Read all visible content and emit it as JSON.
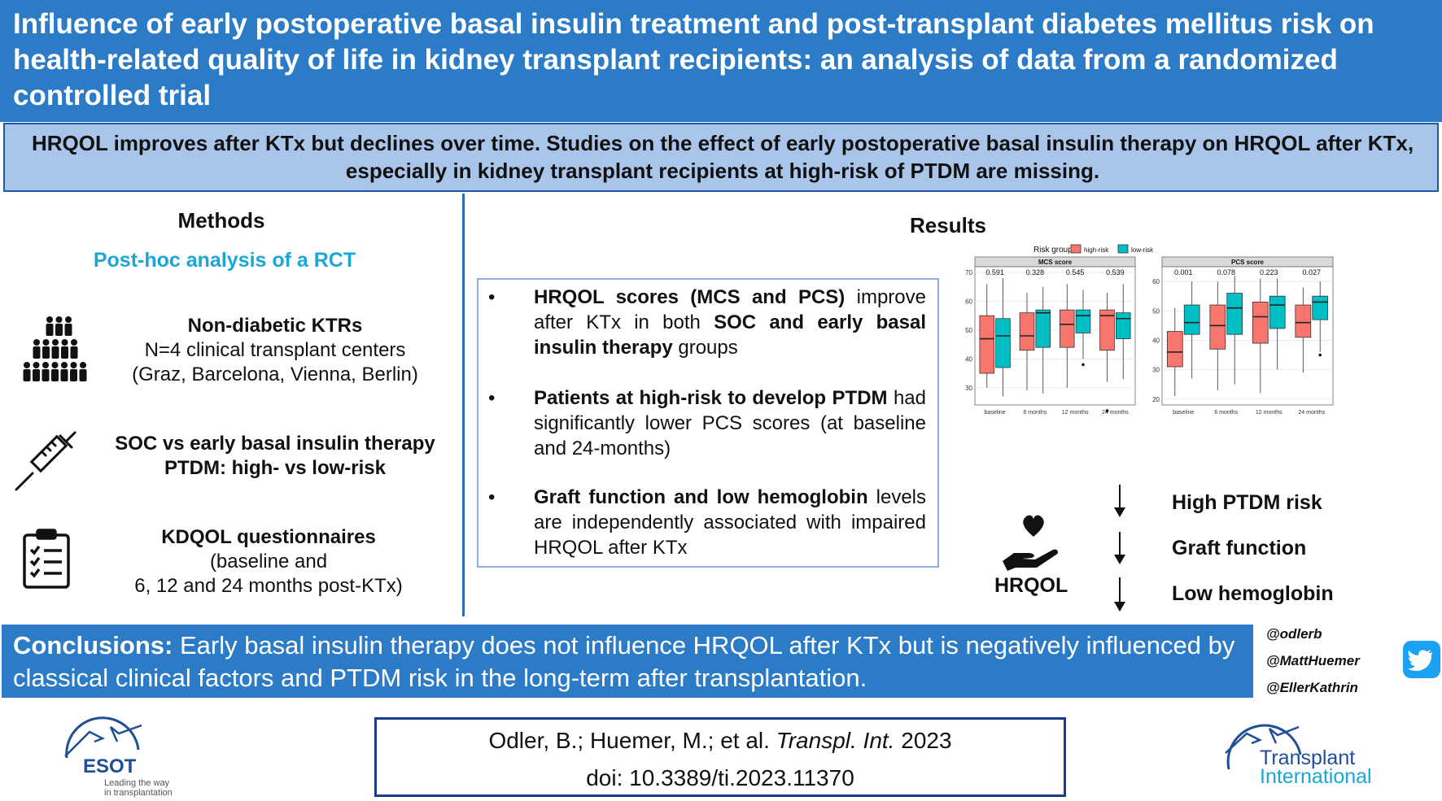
{
  "title": "Influence of early postoperative basal insulin treatment and post-transplant diabetes mellitus risk on health-related quality of life in kidney transplant recipients: an analysis of data from a randomized controlled trial",
  "subtitle": "HRQOL improves after KTx but declines over time. Studies on the effect of early postoperative basal insulin therapy on HRQOL after KTx, especially in kidney transplant recipients at high-risk of PTDM are missing.",
  "methods": {
    "heading": "Methods",
    "subheading": "Post-hoc analysis of a RCT",
    "items": [
      {
        "icon": "people-group-icon",
        "title": "Non-diabetic KTRs",
        "line1": "N=4 clinical transplant centers",
        "line2": "(Graz, Barcelona, Vienna, Berlin)"
      },
      {
        "icon": "syringe-icon",
        "title": "SOC vs early basal insulin therapy",
        "line1": "PTDM: high- vs low-risk",
        "line2": ""
      },
      {
        "icon": "clipboard-checklist-icon",
        "title": "KDQOL questionnaires",
        "line1": "(baseline and",
        "line2": "6, 12 and 24 months post-KTx)"
      }
    ]
  },
  "results": {
    "heading": "Results",
    "findings": [
      {
        "bold1": "HRQOL scores (MCS and PCS)",
        "text1": " improve after KTx in both ",
        "bold2": "SOC and early basal insulin therapy",
        "text2": " groups"
      },
      {
        "bold1": "Patients at high-risk to develop PTDM",
        "text1": " had significantly lower PCS scores (at baseline and 24-months)",
        "bold2": "",
        "text2": ""
      },
      {
        "bold1": "Graft function and low hemoglobin",
        "text1": " levels are independently associated with impaired HRQOL after KTx",
        "bold2": "",
        "text2": ""
      }
    ],
    "factors": [
      "High PTDM risk",
      "Graft function",
      "Low hemoglobin"
    ],
    "hrqol_label": "HRQOL"
  },
  "chart_data": {
    "type": "boxplot",
    "legend": {
      "title": "Risk group",
      "entries": [
        "high-risk",
        "low-risk"
      ],
      "placement": "top"
    },
    "colors": {
      "high-risk": "#f8766d",
      "low-risk": "#00bfc4"
    },
    "categories": [
      "baseline",
      "6 months",
      "12 months",
      "24 months"
    ],
    "panels": [
      {
        "title": "MCS score",
        "ylim": [
          24,
          72
        ],
        "yticks": [
          30,
          40,
          50,
          60,
          70
        ],
        "pvalues": [
          "0.591",
          "0.328",
          "0.545",
          "0.539"
        ],
        "series": [
          {
            "name": "high-risk",
            "boxes": [
              [
                30,
                35,
                47,
                55,
                66
              ],
              [
                29,
                43,
                48,
                56,
                63
              ],
              [
                30,
                44,
                52,
                57,
                66
              ],
              [
                32,
                43,
                55,
                57,
                63
              ]
            ]
          },
          {
            "name": "low-risk",
            "boxes": [
              [
                27,
                37,
                48,
                54,
                68
              ],
              [
                28,
                44,
                56,
                57,
                65
              ],
              [
                40,
                49,
                55,
                57,
                64
              ],
              [
                33,
                47,
                54,
                56,
                66
              ]
            ]
          }
        ],
        "outliers": [
          {
            "category": "12 months",
            "series": "low-risk",
            "value": 38
          },
          {
            "category": "24 months",
            "series": "high-risk",
            "value": 22
          }
        ]
      },
      {
        "title": "PCS score",
        "ylim": [
          18,
          65
        ],
        "yticks": [
          20,
          30,
          40,
          50,
          60
        ],
        "pvalues": [
          "0.001",
          "0.078",
          "0.223",
          "0.027"
        ],
        "series": [
          {
            "name": "high-risk",
            "boxes": [
              [
                21,
                31,
                36,
                43,
                51
              ],
              [
                23,
                37,
                45,
                52,
                60
              ],
              [
                22,
                39,
                48,
                53,
                61
              ],
              [
                29,
                41,
                46,
                52,
                58
              ]
            ]
          },
          {
            "name": "low-risk",
            "boxes": [
              [
                27,
                42,
                46,
                52,
                60
              ],
              [
                25,
                42,
                51,
                56,
                62
              ],
              [
                30,
                44,
                52,
                55,
                61
              ],
              [
                36,
                47,
                53,
                55,
                60
              ]
            ]
          }
        ],
        "outliers": [
          {
            "category": "24 months",
            "series": "low-risk",
            "value": 35
          }
        ]
      }
    ]
  },
  "conclusions": {
    "label": "Conclusions:",
    "text": " Early basal insulin therapy does not influence HRQOL after KTx but is negatively influenced by classical clinical factors and PTDM risk in the long-term after transplantation."
  },
  "social": {
    "handles": [
      "@odlerb",
      "@MattHuemer",
      "@EllerKathrin"
    ],
    "icon": "twitter-bird-icon"
  },
  "citation": {
    "authors": "Odler, B.; Huemer, M.; et al. ",
    "journal": "Transpl. Int.",
    "year": " 2023",
    "doi": "doi: 10.3389/ti.2023.11370"
  },
  "logos": {
    "esot_name": "ESOT",
    "esot_tagline1": "Leading the way",
    "esot_tagline2": "in transplantation",
    "ti_line1": "Transplant",
    "ti_line2": "International"
  },
  "colors": {
    "primary_blue": "#2b7bc7",
    "subtitle_bg": "#a9c6ea",
    "accent_cyan": "#1aa7d8",
    "logo_blue": "#1f4e96"
  }
}
